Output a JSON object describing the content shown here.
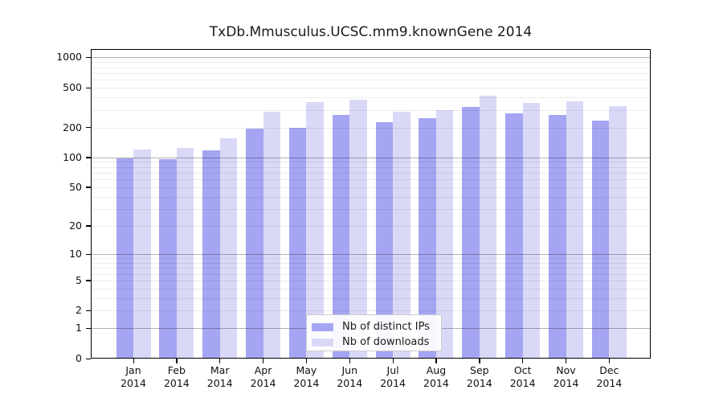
{
  "chart_data": {
    "type": "bar",
    "title": "TxDb.Mmusculus.UCSC.mm9.knownGene 2014",
    "categories": [
      "Jan 2014",
      "Feb 2014",
      "Mar 2014",
      "Apr 2014",
      "May 2014",
      "Jun 2014",
      "Jul 2014",
      "Aug 2014",
      "Sep 2014",
      "Oct 2014",
      "Nov 2014",
      "Dec 2014"
    ],
    "series": [
      {
        "name": "Nb of distinct IPs",
        "color": "#a5a5f3",
        "values": [
          97,
          96,
          117,
          196,
          197,
          265,
          224,
          247,
          323,
          276,
          268,
          236
        ]
      },
      {
        "name": "Nb of downloads",
        "color": "#d9d9f7",
        "values": [
          119,
          124,
          155,
          285,
          357,
          382,
          285,
          300,
          415,
          353,
          362,
          328
        ]
      }
    ],
    "xlabel": "",
    "ylabel": "",
    "yscale": "log1p",
    "yticks": [
      0,
      1,
      2,
      5,
      10,
      20,
      50,
      100,
      200,
      500,
      1000
    ],
    "ylim": [
      0,
      1216
    ],
    "grid": "horizontal major and minor log gridlines drawn over bars",
    "legend_position": "bottom-center"
  },
  "colors": {
    "axis": "#000000",
    "text": "#111111",
    "grid_major": "rgba(0,0,0,0.30)",
    "grid_minor": "rgba(0,0,0,0.08)",
    "legend_border": "#cccccc",
    "background": "#ffffff"
  }
}
